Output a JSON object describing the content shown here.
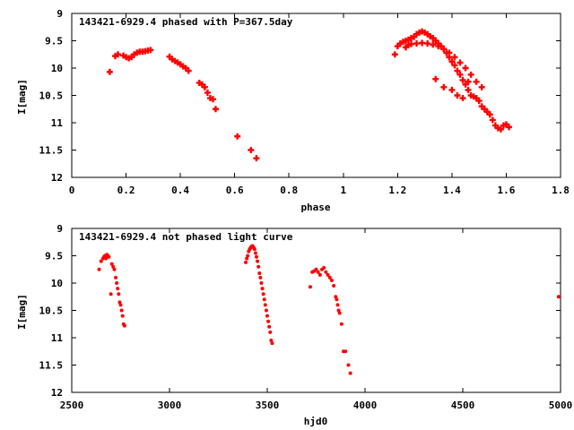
{
  "chart_data": [
    {
      "type": "scatter",
      "title": "143421-6929.4 phased with P=367.5day",
      "xlabel": "phase",
      "ylabel": "I[mag]",
      "xlim": [
        0,
        1.8
      ],
      "ylim": [
        9,
        12
      ],
      "y_inverted": true,
      "xticks": [
        "0",
        "0.2",
        "0.4",
        "0.6",
        "0.8",
        "1",
        "1.2",
        "1.4",
        "1.6",
        "1.8"
      ],
      "yticks": [
        "9",
        "9.5",
        "10",
        "10.5",
        "11",
        "11.5",
        "12"
      ],
      "grid": false,
      "color": "#ff0000",
      "series": [
        {
          "x": [
            0.14,
            0.16,
            0.17,
            0.19,
            0.2,
            0.21,
            0.22,
            0.23,
            0.24,
            0.25,
            0.26,
            0.27,
            0.28,
            0.29,
            0.36,
            0.37,
            0.38,
            0.39,
            0.4,
            0.41,
            0.42,
            0.43,
            0.47,
            0.48,
            0.49,
            0.5,
            0.51,
            0.52,
            0.53,
            0.61,
            0.66,
            0.68,
            1.19,
            1.2,
            1.21,
            1.22,
            1.23,
            1.24,
            1.25,
            1.26,
            1.27,
            1.28,
            1.29,
            1.3,
            1.31,
            1.32,
            1.33,
            1.34,
            1.35,
            1.36,
            1.37,
            1.38,
            1.39,
            1.4,
            1.41,
            1.42,
            1.43,
            1.44,
            1.45,
            1.46,
            1.47,
            1.48,
            1.49,
            1.5,
            1.51,
            1.52,
            1.53,
            1.54,
            1.55,
            1.56,
            1.57,
            1.58,
            1.59,
            1.6,
            1.61,
            1.23,
            1.24,
            1.25,
            1.27,
            1.29,
            1.31,
            1.33,
            1.35,
            1.37,
            1.39,
            1.41,
            1.43,
            1.45,
            1.47,
            1.49,
            1.51,
            1.34,
            1.37,
            1.4,
            1.42,
            1.44,
            1.46
          ],
          "y": [
            10.07,
            9.78,
            9.75,
            9.77,
            9.8,
            9.82,
            9.8,
            9.75,
            9.72,
            9.7,
            9.7,
            9.69,
            9.68,
            9.67,
            9.79,
            9.84,
            9.87,
            9.9,
            9.93,
            9.97,
            10.0,
            10.05,
            10.27,
            10.3,
            10.35,
            10.45,
            10.55,
            10.57,
            10.75,
            11.25,
            11.5,
            11.65,
            9.75,
            9.6,
            9.55,
            9.52,
            9.5,
            9.48,
            9.45,
            9.43,
            9.38,
            9.35,
            9.33,
            9.35,
            9.38,
            9.42,
            9.45,
            9.5,
            9.55,
            9.6,
            9.65,
            9.72,
            9.8,
            9.88,
            9.95,
            10.05,
            10.12,
            10.22,
            10.3,
            10.4,
            10.5,
            10.52,
            10.55,
            10.6,
            10.7,
            10.75,
            10.8,
            10.85,
            10.95,
            11.05,
            11.1,
            11.12,
            11.05,
            11.03,
            11.08,
            9.62,
            9.58,
            9.56,
            9.55,
            9.54,
            9.55,
            9.57,
            9.6,
            9.65,
            9.72,
            9.8,
            9.9,
            10.0,
            10.12,
            10.25,
            10.35,
            10.2,
            10.35,
            10.4,
            10.5,
            10.55,
            10.25
          ]
        }
      ]
    },
    {
      "type": "scatter",
      "title": "143421-6929.4 not phased light curve",
      "xlabel": "hjd0",
      "ylabel": "I[mag]",
      "xlim": [
        2500,
        5000
      ],
      "ylim": [
        9,
        12
      ],
      "y_inverted": true,
      "xticks": [
        "2500",
        "3000",
        "3500",
        "4000",
        "4500",
        "5000"
      ],
      "yticks": [
        "9",
        "9.5",
        "10",
        "10.5",
        "11",
        "11.5",
        "12"
      ],
      "grid": false,
      "color": "#ff0000",
      "series": [
        {
          "x": [
            2640,
            2650,
            2660,
            2665,
            2670,
            2675,
            2680,
            2685,
            2690,
            2700,
            2705,
            2712,
            2718,
            2725,
            2730,
            2735,
            2740,
            2745,
            2750,
            2755,
            2760,
            2765,
            2770,
            3390,
            3395,
            3400,
            3405,
            3410,
            3415,
            3420,
            3425,
            3430,
            3435,
            3440,
            3445,
            3450,
            3455,
            3460,
            3465,
            3470,
            3475,
            3480,
            3485,
            3490,
            3495,
            3500,
            3505,
            3510,
            3515,
            3520,
            3525,
            3720,
            3730,
            3740,
            3750,
            3760,
            3770,
            3780,
            3790,
            3800,
            3810,
            3820,
            3830,
            3840,
            3850,
            3855,
            3860,
            3865,
            3870,
            3880,
            3890,
            3900,
            3915,
            3925,
            4990
          ],
          "y": [
            9.75,
            9.6,
            9.55,
            9.52,
            9.5,
            9.55,
            9.48,
            9.5,
            9.52,
            10.2,
            9.65,
            9.7,
            9.75,
            9.9,
            10.0,
            10.1,
            10.2,
            10.35,
            10.4,
            10.5,
            10.6,
            10.75,
            10.78,
            9.62,
            9.55,
            9.5,
            9.42,
            9.38,
            9.35,
            9.33,
            9.32,
            9.35,
            9.38,
            9.45,
            9.52,
            9.6,
            9.7,
            9.82,
            9.9,
            10.0,
            10.1,
            10.2,
            10.3,
            10.4,
            10.5,
            10.6,
            10.7,
            10.8,
            10.9,
            11.05,
            11.1,
            10.07,
            9.8,
            9.78,
            9.75,
            9.8,
            9.85,
            9.75,
            9.72,
            9.8,
            9.85,
            9.9,
            9.95,
            10.05,
            10.25,
            10.3,
            10.4,
            10.5,
            10.55,
            10.75,
            11.25,
            11.25,
            11.5,
            11.65,
            10.25
          ]
        }
      ]
    }
  ]
}
